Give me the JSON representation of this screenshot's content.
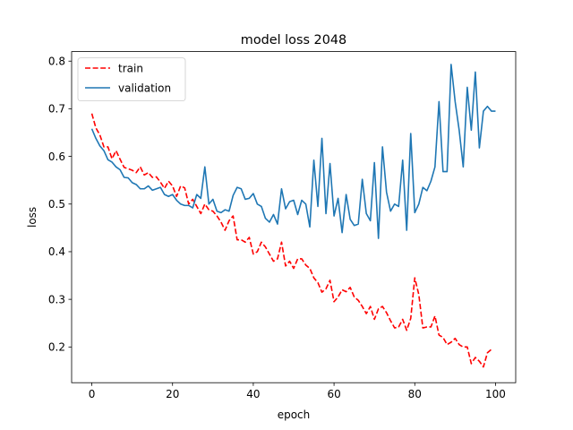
{
  "chart_data": {
    "type": "line",
    "title": "model loss 2048",
    "xlabel": "epoch",
    "ylabel": "loss",
    "xlim": [
      -5,
      105
    ],
    "ylim": [
      0.125,
      0.82
    ],
    "xticks": [
      0,
      20,
      40,
      60,
      80,
      100
    ],
    "yticks": [
      0.2,
      0.3,
      0.4,
      0.5,
      0.6,
      0.7,
      0.8
    ],
    "xtick_labels": [
      "0",
      "20",
      "40",
      "60",
      "80",
      "100"
    ],
    "ytick_labels": [
      "0.2",
      "0.3",
      "0.4",
      "0.5",
      "0.6",
      "0.7",
      "0.8"
    ],
    "legend_position": "top-left",
    "grid": false,
    "series": [
      {
        "name": "train",
        "color": "#ff0000",
        "style": "dashed",
        "x": [
          0,
          1,
          2,
          3,
          4,
          5,
          6,
          7,
          8,
          9,
          10,
          11,
          12,
          13,
          14,
          15,
          16,
          17,
          18,
          19,
          20,
          21,
          22,
          23,
          24,
          25,
          26,
          27,
          28,
          29,
          30,
          31,
          32,
          33,
          34,
          35,
          36,
          37,
          38,
          39,
          40,
          41,
          42,
          43,
          44,
          45,
          46,
          47,
          48,
          49,
          50,
          51,
          52,
          53,
          54,
          55,
          56,
          57,
          58,
          59,
          60,
          61,
          62,
          63,
          64,
          65,
          66,
          67,
          68,
          69,
          70,
          71,
          72,
          73,
          74,
          75,
          76,
          77,
          78,
          79,
          80,
          81,
          82,
          83,
          84,
          85,
          86,
          87,
          88,
          89,
          90,
          91,
          92,
          93,
          94,
          95,
          96,
          97,
          98,
          99
        ],
        "values": [
          0.69,
          0.66,
          0.645,
          0.62,
          0.62,
          0.595,
          0.612,
          0.594,
          0.577,
          0.574,
          0.571,
          0.566,
          0.578,
          0.561,
          0.566,
          0.556,
          0.557,
          0.546,
          0.533,
          0.548,
          0.538,
          0.516,
          0.538,
          0.534,
          0.5,
          0.51,
          0.495,
          0.48,
          0.5,
          0.488,
          0.485,
          0.475,
          0.462,
          0.445,
          0.465,
          0.475,
          0.425,
          0.425,
          0.42,
          0.43,
          0.395,
          0.4,
          0.42,
          0.41,
          0.395,
          0.38,
          0.385,
          0.42,
          0.37,
          0.38,
          0.365,
          0.385,
          0.385,
          0.372,
          0.365,
          0.345,
          0.335,
          0.315,
          0.322,
          0.34,
          0.295,
          0.305,
          0.32,
          0.316,
          0.325,
          0.305,
          0.298,
          0.285,
          0.27,
          0.285,
          0.258,
          0.28,
          0.285,
          0.272,
          0.255,
          0.24,
          0.242,
          0.258,
          0.235,
          0.26,
          0.345,
          0.31,
          0.24,
          0.242,
          0.242,
          0.265,
          0.225,
          0.22,
          0.205,
          0.21,
          0.218,
          0.205,
          0.2,
          0.2,
          0.165,
          0.178,
          0.17,
          0.158,
          0.188,
          0.195
        ]
      },
      {
        "name": "validation",
        "color": "#1f77b4",
        "style": "solid",
        "x": [
          0,
          1,
          2,
          3,
          4,
          5,
          6,
          7,
          8,
          9,
          10,
          11,
          12,
          13,
          14,
          15,
          16,
          17,
          18,
          19,
          20,
          21,
          22,
          23,
          24,
          25,
          26,
          27,
          28,
          29,
          30,
          31,
          32,
          33,
          34,
          35,
          36,
          37,
          38,
          39,
          40,
          41,
          42,
          43,
          44,
          45,
          46,
          47,
          48,
          49,
          50,
          51,
          52,
          53,
          54,
          55,
          56,
          57,
          58,
          59,
          60,
          61,
          62,
          63,
          64,
          65,
          66,
          67,
          68,
          69,
          70,
          71,
          72,
          73,
          74,
          75,
          76,
          77,
          78,
          79,
          80,
          81,
          82,
          83,
          84,
          85,
          86,
          87,
          88,
          89,
          90,
          91,
          92,
          93,
          94,
          95,
          96,
          97,
          98,
          99,
          100
        ],
        "values": [
          0.658,
          0.638,
          0.622,
          0.612,
          0.593,
          0.588,
          0.578,
          0.572,
          0.556,
          0.555,
          0.545,
          0.541,
          0.532,
          0.532,
          0.538,
          0.529,
          0.532,
          0.535,
          0.52,
          0.516,
          0.52,
          0.508,
          0.5,
          0.497,
          0.497,
          0.492,
          0.52,
          0.512,
          0.578,
          0.5,
          0.51,
          0.485,
          0.482,
          0.488,
          0.485,
          0.518,
          0.535,
          0.532,
          0.51,
          0.512,
          0.522,
          0.5,
          0.495,
          0.47,
          0.462,
          0.478,
          0.458,
          0.532,
          0.49,
          0.505,
          0.508,
          0.478,
          0.508,
          0.5,
          0.452,
          0.592,
          0.495,
          0.638,
          0.48,
          0.585,
          0.475,
          0.512,
          0.44,
          0.52,
          0.468,
          0.455,
          0.458,
          0.552,
          0.48,
          0.465,
          0.587,
          0.428,
          0.62,
          0.525,
          0.485,
          0.5,
          0.495,
          0.592,
          0.445,
          0.648,
          0.482,
          0.5,
          0.535,
          0.528,
          0.548,
          0.578,
          0.715,
          0.568,
          0.568,
          0.793,
          0.715,
          0.655,
          0.578,
          0.745,
          0.655,
          0.777,
          0.618,
          0.695,
          0.705,
          0.695,
          0.695
        ]
      }
    ]
  }
}
